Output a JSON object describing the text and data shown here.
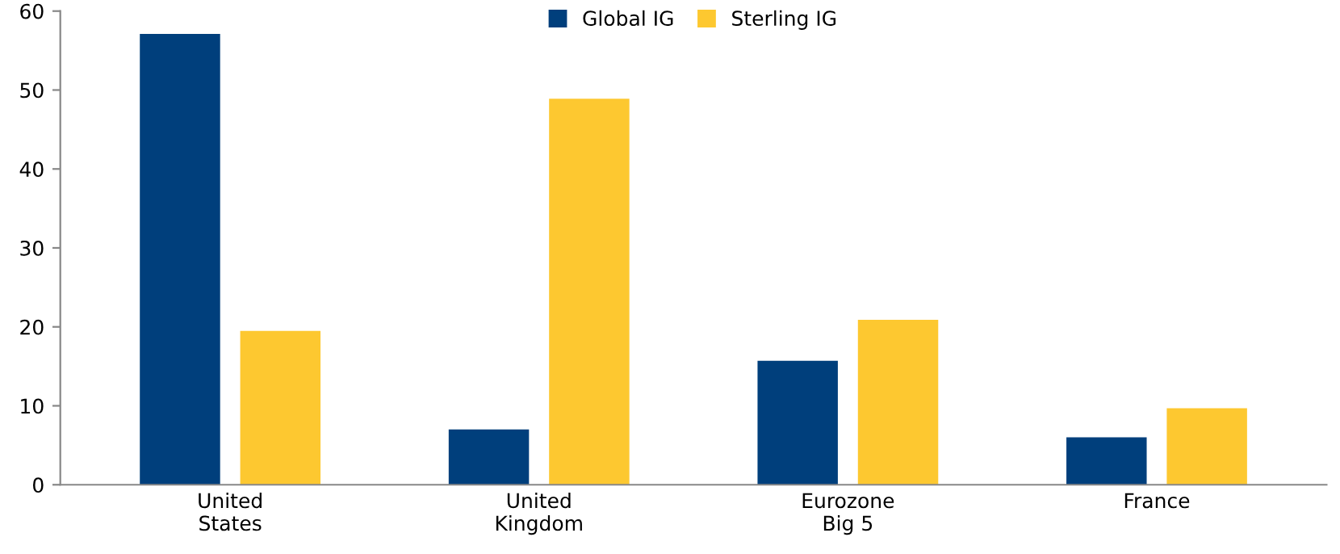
{
  "chart_data": {
    "type": "bar",
    "categories": [
      "United\nStates",
      "United\nKingdom",
      "Eurozone\nBig 5",
      "France"
    ],
    "series": [
      {
        "name": "Global IG",
        "color": "#003f7c",
        "values": [
          57.1,
          7.0,
          15.7,
          6.0
        ]
      },
      {
        "name": "Sterling IG",
        "color": "#fdc830",
        "values": [
          19.5,
          48.9,
          20.9,
          9.7
        ]
      }
    ],
    "ylim": [
      0,
      60
    ],
    "yticks": [
      0,
      10,
      20,
      30,
      40,
      50,
      60
    ],
    "grid": false,
    "legend": "top"
  }
}
